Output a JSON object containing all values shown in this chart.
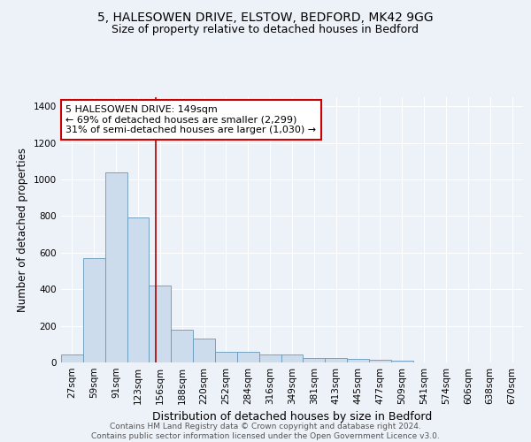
{
  "title1": "5, HALESOWEN DRIVE, ELSTOW, BEDFORD, MK42 9GG",
  "title2": "Size of property relative to detached houses in Bedford",
  "xlabel": "Distribution of detached houses by size in Bedford",
  "ylabel": "Number of detached properties",
  "categories": [
    "27sqm",
    "59sqm",
    "91sqm",
    "123sqm",
    "156sqm",
    "188sqm",
    "220sqm",
    "252sqm",
    "284sqm",
    "316sqm",
    "349sqm",
    "381sqm",
    "413sqm",
    "445sqm",
    "477sqm",
    "509sqm",
    "541sqm",
    "574sqm",
    "606sqm",
    "638sqm",
    "670sqm"
  ],
  "values": [
    45,
    570,
    1040,
    795,
    420,
    180,
    130,
    60,
    60,
    45,
    45,
    25,
    25,
    20,
    15,
    10,
    0,
    0,
    0,
    0,
    0
  ],
  "bar_color": "#cddcec",
  "bar_edge_color": "#6699bb",
  "background_color": "#edf1f8",
  "grid_color": "#ffffff",
  "red_line_x": 3.79,
  "annotation_text": "5 HALESOWEN DRIVE: 149sqm\n← 69% of detached houses are smaller (2,299)\n31% of semi-detached houses are larger (1,030) →",
  "annotation_box_color": "#ffffff",
  "annotation_box_edge": "#cc0000",
  "ylim": [
    0,
    1450
  ],
  "yticks": [
    0,
    200,
    400,
    600,
    800,
    1000,
    1200,
    1400
  ],
  "footnote": "Contains HM Land Registry data © Crown copyright and database right 2024.\nContains public sector information licensed under the Open Government Licence v3.0.",
  "title1_fontsize": 10,
  "title2_fontsize": 9,
  "ylabel_fontsize": 8.5,
  "xlabel_fontsize": 9,
  "tick_fontsize": 7.5,
  "annot_fontsize": 8,
  "footnote_fontsize": 6.5
}
